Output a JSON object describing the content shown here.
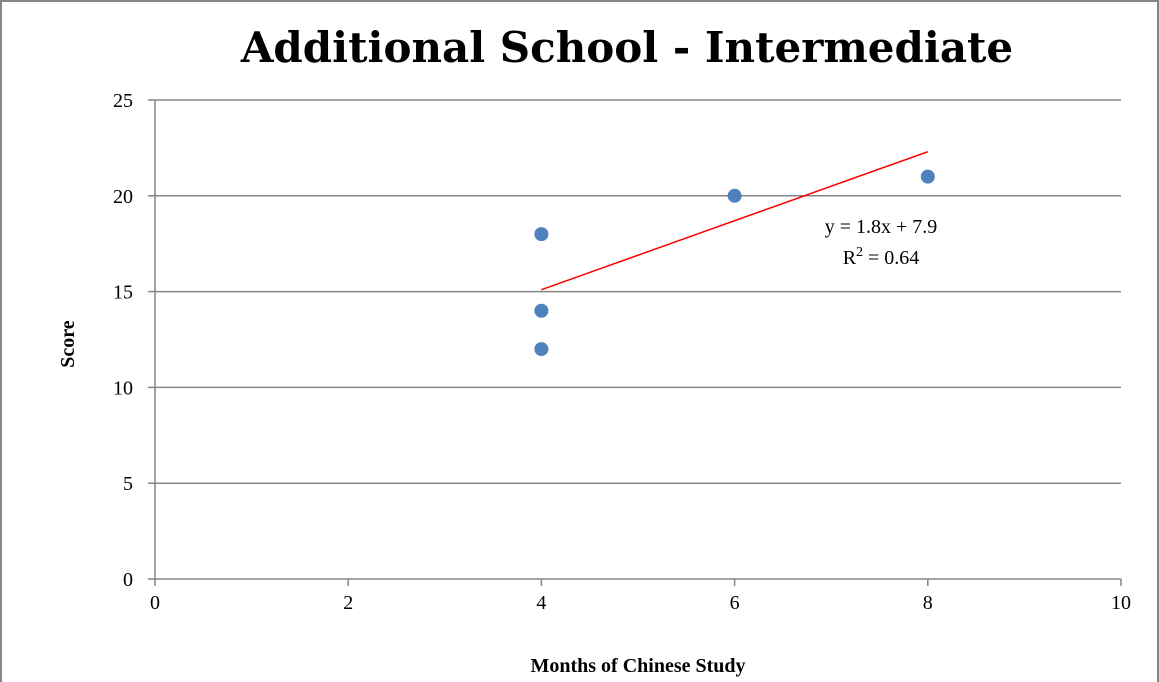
{
  "chart_data": {
    "type": "scatter",
    "title": "Additional School - Intermediate",
    "xlabel": "Months of Chinese Study",
    "ylabel": "Score",
    "xlim": [
      0,
      10
    ],
    "ylim": [
      0,
      25
    ],
    "xticks": [
      "0",
      "2",
      "4",
      "6",
      "8",
      "10"
    ],
    "yticks": [
      "0",
      "5",
      "10",
      "15",
      "20",
      "25"
    ],
    "grid": "horizontal major gridlines",
    "legend": "none",
    "points": [
      {
        "x": 4,
        "y": 18
      },
      {
        "x": 4,
        "y": 14
      },
      {
        "x": 4,
        "y": 12
      },
      {
        "x": 6,
        "y": 20
      },
      {
        "x": 8,
        "y": 21
      }
    ],
    "trendline": {
      "type": "linear",
      "slope": 1.8,
      "intercept": 7.9,
      "x_range": [
        4,
        8
      ],
      "equation_label": "y = 1.8x + 7.9",
      "r2_label_prefix": "R",
      "r2_label_sup": "2",
      "r2_label_value": " = 0.64"
    },
    "colors": {
      "marker": "#4f81bd",
      "trendline": "#ff0000",
      "grid": "#868686",
      "axis": "#868686",
      "border": "#868686"
    }
  }
}
